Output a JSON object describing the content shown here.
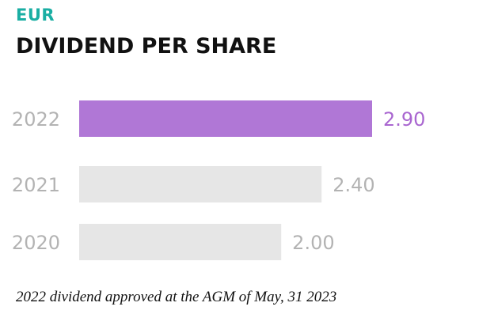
{
  "unit_label": "EUR",
  "title": "DIVIDEND PER SHARE",
  "footnote": "2022 dividend approved at the AGM of May, 31 2023",
  "colors": {
    "highlight": "#b077d6",
    "highlight_text": "#a966d0",
    "default_bar": "#e6e6e6",
    "default_text": "#b3b3b3",
    "unit": "#1aaea3"
  },
  "chart_data": {
    "type": "bar",
    "orientation": "horizontal",
    "categories": [
      "2022",
      "2021",
      "2020"
    ],
    "values": [
      2.9,
      2.4,
      2.0
    ],
    "value_labels": [
      "2.90",
      "2.40",
      "2.00"
    ],
    "highlighted": "2022",
    "title": "DIVIDEND PER SHARE",
    "unit": "EUR",
    "xlim": [
      0,
      2.9
    ],
    "grid": false,
    "legend": "none"
  }
}
